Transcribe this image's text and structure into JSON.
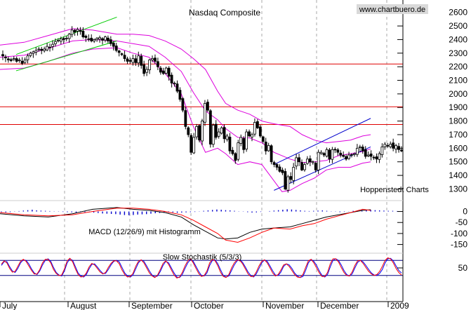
{
  "chart_data": [
    {
      "type": "candlestick",
      "title": "Nasdaq Composite",
      "watermark": "www.chartbuero.de",
      "annotation": "Hoppenstedt Charts",
      "ylim": [
        1230,
        2650
      ],
      "y_ticks": [
        1300,
        1400,
        1500,
        1600,
        1700,
        1800,
        1900,
        2000,
        2100,
        2200,
        2300,
        2400,
        2500,
        2600
      ],
      "horizontal_lines": [
        2220,
        1905,
        1775
      ],
      "trend_channels": [
        {
          "color": "#00cc00",
          "lines": [
            [
              [
                0.04,
                2170
              ],
              [
                0.29,
                2390
              ]
            ],
            [
              [
                0.04,
                2290
              ],
              [
                0.29,
                2565
              ]
            ]
          ]
        },
        {
          "color": "#0000cc",
          "lines": [
            [
              [
                0.68,
                1290
              ],
              [
                0.92,
                1610
              ]
            ],
            [
              [
                0.68,
                1480
              ],
              [
                0.92,
                1820
              ]
            ]
          ]
        }
      ],
      "closes": [
        2280,
        2265,
        2250,
        2245,
        2260,
        2240,
        2250,
        2225,
        2250,
        2280,
        2300,
        2310,
        2320,
        2330,
        2320,
        2330,
        2350,
        2340,
        2365,
        2385,
        2395,
        2405,
        2400,
        2410,
        2440,
        2470,
        2455,
        2475,
        2460,
        2420,
        2415,
        2405,
        2390,
        2400,
        2410,
        2415,
        2395,
        2420,
        2390,
        2370,
        2350,
        2320,
        2305,
        2290,
        2260,
        2240,
        2240,
        2260,
        2230,
        2280,
        2210,
        2150,
        2180,
        2250,
        2260,
        2240,
        2200,
        2160,
        2150,
        2190,
        2130,
        2080,
        2080,
        2020,
        1960,
        1880,
        1760,
        1700,
        1570,
        1680,
        1760,
        1660,
        1800,
        1930,
        1880,
        1630,
        1770,
        1680,
        1720,
        1750,
        1670,
        1690,
        1580,
        1560,
        1510,
        1640,
        1680,
        1590,
        1720,
        1690,
        1700,
        1790,
        1750,
        1690,
        1650,
        1580,
        1620,
        1500,
        1480,
        1460,
        1430,
        1420,
        1300,
        1390,
        1370,
        1460,
        1530,
        1500,
        1440,
        1480,
        1520,
        1500,
        1500,
        1440,
        1570,
        1570,
        1550,
        1590,
        1520,
        1590,
        1590,
        1570,
        1550,
        1540,
        1520,
        1550,
        1550,
        1560,
        1600,
        1610,
        1580,
        1540,
        1550,
        1540,
        1530,
        1520,
        1560,
        1610,
        1630,
        1620,
        1630,
        1600,
        1620,
        1590,
        1580
      ],
      "bollinger_bands": {
        "upper": [
          [
            0.0,
            2360
          ],
          [
            0.06,
            2380
          ],
          [
            0.12,
            2430
          ],
          [
            0.18,
            2480
          ],
          [
            0.23,
            2470
          ],
          [
            0.29,
            2440
          ],
          [
            0.33,
            2440
          ],
          [
            0.37,
            2430
          ],
          [
            0.41,
            2390
          ],
          [
            0.45,
            2330
          ],
          [
            0.48,
            2260
          ],
          [
            0.51,
            2180
          ],
          [
            0.54,
            2020
          ],
          [
            0.56,
            1930
          ],
          [
            0.59,
            1880
          ],
          [
            0.62,
            1850
          ],
          [
            0.65,
            1800
          ],
          [
            0.68,
            1780
          ],
          [
            0.72,
            1760
          ],
          [
            0.75,
            1700
          ],
          [
            0.78,
            1660
          ],
          [
            0.81,
            1640
          ],
          [
            0.84,
            1650
          ],
          [
            0.87,
            1660
          ],
          [
            0.9,
            1690
          ],
          [
            0.92,
            1700
          ]
        ],
        "lower": [
          [
            0.0,
            2180
          ],
          [
            0.06,
            2190
          ],
          [
            0.12,
            2240
          ],
          [
            0.18,
            2300
          ],
          [
            0.23,
            2330
          ],
          [
            0.29,
            2340
          ],
          [
            0.33,
            2300
          ],
          [
            0.37,
            2270
          ],
          [
            0.41,
            2150
          ],
          [
            0.45,
            2000
          ],
          [
            0.48,
            1760
          ],
          [
            0.51,
            1570
          ],
          [
            0.54,
            1600
          ],
          [
            0.56,
            1560
          ],
          [
            0.59,
            1480
          ],
          [
            0.62,
            1500
          ],
          [
            0.65,
            1480
          ],
          [
            0.68,
            1360
          ],
          [
            0.7,
            1280
          ],
          [
            0.72,
            1290
          ],
          [
            0.75,
            1340
          ],
          [
            0.78,
            1380
          ],
          [
            0.81,
            1440
          ],
          [
            0.84,
            1460
          ],
          [
            0.87,
            1460
          ],
          [
            0.9,
            1490
          ],
          [
            0.92,
            1500
          ]
        ]
      }
    },
    {
      "type": "line",
      "title": "MACD (12/26/9) mit Histogramm",
      "ylim": [
        -180,
        40
      ],
      "y_ticks": [
        0,
        -50,
        -100,
        -150
      ],
      "x": [
        0.0,
        0.06,
        0.12,
        0.18,
        0.23,
        0.29,
        0.33,
        0.37,
        0.41,
        0.45,
        0.48,
        0.51,
        0.54,
        0.56,
        0.59,
        0.62,
        0.65,
        0.68,
        0.72,
        0.75,
        0.78,
        0.81,
        0.84,
        0.87,
        0.9,
        0.92
      ],
      "series": [
        {
          "color": "#000000",
          "values": [
            -10,
            -20,
            -25,
            -10,
            10,
            18,
            10,
            5,
            -5,
            -25,
            -60,
            -90,
            -120,
            -125,
            -120,
            -95,
            -80,
            -75,
            -70,
            -55,
            -40,
            -25,
            -15,
            -5,
            5,
            8
          ]
        },
        {
          "color": "#ff0000",
          "values": [
            -5,
            -15,
            -20,
            -15,
            0,
            15,
            15,
            10,
            0,
            -15,
            -40,
            -70,
            -100,
            -130,
            -140,
            -120,
            -95,
            -75,
            -80,
            -65,
            -55,
            -35,
            -20,
            -5,
            10,
            5
          ]
        }
      ],
      "histogram": [
        -3,
        -4,
        -3,
        1,
        2,
        4,
        6,
        8,
        5,
        4,
        3,
        2,
        1,
        -1,
        -2,
        -3,
        -4,
        -5,
        -4,
        -3,
        -2,
        -5,
        -7,
        -9,
        -10,
        -11,
        -12,
        -14,
        -16,
        -17,
        -16,
        -14,
        -13,
        -12,
        -10,
        -8,
        -7,
        -6,
        -5,
        -4,
        -6,
        -5,
        -4,
        -3,
        -2,
        1,
        3,
        5,
        7,
        9,
        8,
        6,
        5,
        3,
        1,
        -1,
        -3,
        -5,
        -4,
        -2,
        0,
        2,
        4,
        6,
        8,
        10,
        9,
        7,
        5,
        3,
        2,
        3,
        4,
        5,
        3,
        1,
        -1,
        -3,
        -2,
        1,
        3,
        5,
        7,
        8,
        7,
        6,
        5,
        4,
        3,
        3,
        2
      ]
    },
    {
      "type": "line",
      "title": "Slow Stochastik (5/3/3)",
      "ylim": [
        0,
        100
      ],
      "y_ticks": [
        50
      ],
      "reference_lines": [
        80,
        20
      ],
      "series": [
        {
          "color": "#0000ff",
          "values": [
            60,
            75,
            75,
            55,
            38,
            32,
            48,
            70,
            82,
            80,
            66,
            46,
            30,
            24,
            38,
            62,
            80,
            86,
            76,
            52,
            32,
            22,
            18,
            38,
            70,
            86,
            80,
            55,
            30,
            18,
            14,
            24,
            46,
            64,
            66,
            54,
            40,
            28,
            28,
            44,
            62,
            76,
            80,
            74,
            52,
            30,
            18,
            14,
            22,
            46,
            70,
            82,
            76,
            58,
            38,
            22,
            14,
            18,
            36,
            60,
            76,
            70,
            50,
            30,
            14,
            12,
            24,
            48,
            70,
            84,
            76,
            56,
            36,
            20,
            18,
            30,
            60,
            80,
            82,
            66,
            42,
            20,
            14,
            18,
            40,
            62,
            78,
            82,
            72,
            54,
            34,
            20,
            14,
            26,
            48,
            70,
            82,
            76,
            58,
            38,
            22,
            20,
            34,
            56,
            66,
            62,
            48,
            30,
            18,
            12,
            16,
            40,
            70,
            84,
            76,
            60,
            38,
            20,
            14,
            24,
            54,
            80,
            86,
            80,
            62,
            40,
            24,
            18,
            26,
            50,
            72,
            80,
            74,
            60,
            44,
            30,
            22,
            20,
            28,
            44,
            70,
            86,
            88,
            78,
            58,
            40,
            30
          ]
        },
        {
          "color": "#ff0000",
          "values": [
            65,
            78,
            70,
            48,
            33,
            36,
            56,
            76,
            84,
            76,
            58,
            40,
            26,
            26,
            44,
            70,
            84,
            84,
            70,
            44,
            28,
            20,
            22,
            46,
            78,
            88,
            74,
            46,
            24,
            14,
            16,
            30,
            54,
            68,
            62,
            48,
            34,
            26,
            32,
            52,
            68,
            78,
            78,
            66,
            42,
            24,
            14,
            16,
            28,
            56,
            76,
            82,
            70,
            50,
            30,
            18,
            12,
            22,
            44,
            68,
            78,
            64,
            42,
            22,
            10,
            14,
            32,
            58,
            78,
            86,
            70,
            48,
            28,
            16,
            20,
            38,
            70,
            84,
            78,
            58,
            32,
            16,
            12,
            24,
            50,
            70,
            82,
            80,
            66,
            46,
            26,
            16,
            16,
            34,
            58,
            76,
            82,
            70,
            50,
            30,
            18,
            24,
            42,
            62,
            66,
            56,
            40,
            24,
            14,
            12,
            24,
            52,
            78,
            84,
            70,
            50,
            30,
            16,
            16,
            32,
            66,
            86,
            86,
            74,
            52,
            32,
            20,
            18,
            34,
            60,
            78,
            80,
            68,
            52,
            36,
            26,
            20,
            24,
            36,
            56,
            80,
            90,
            86,
            70,
            48,
            32,
            22
          ]
        }
      ]
    },
    {
      "type": "axis",
      "x_tick_labels": [
        "July",
        "August",
        "September",
        "October",
        "November",
        "December",
        "2009"
      ]
    }
  ]
}
